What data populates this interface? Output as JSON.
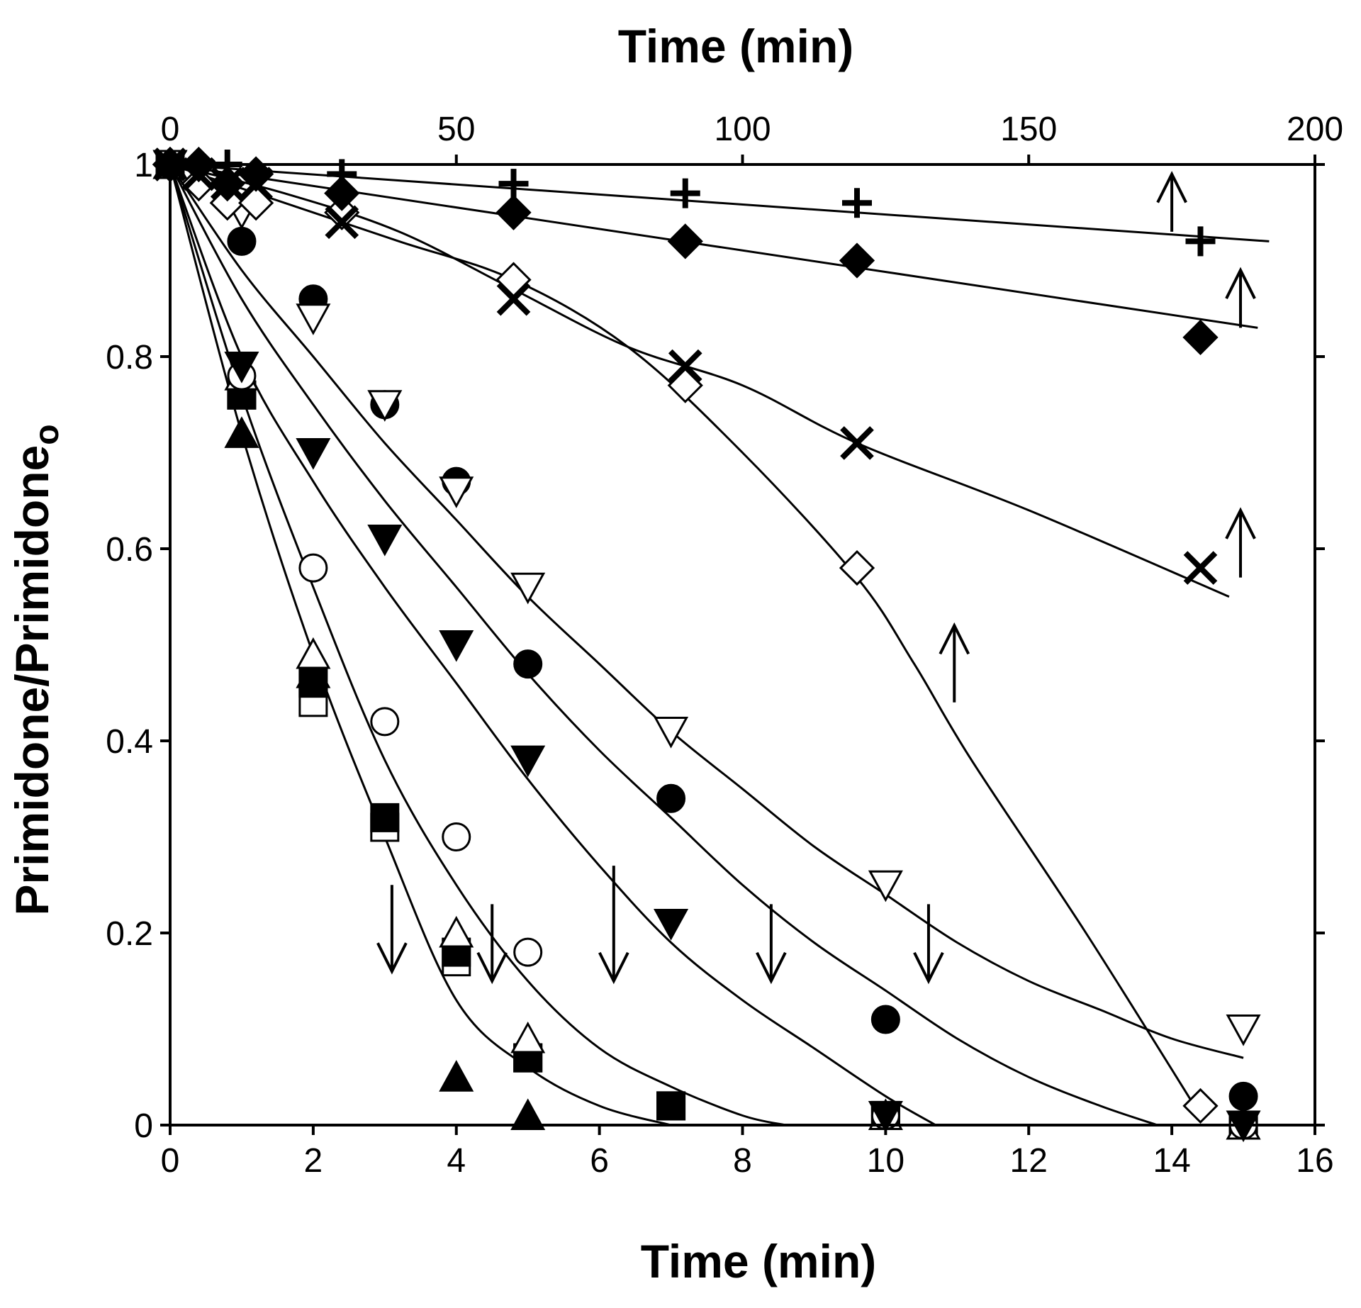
{
  "chart_data": {
    "type": "scatter",
    "title": "",
    "xlabel": "Time (min)",
    "x2label": "Time (min)",
    "ylabel_main": "Primidone/Primidone",
    "ylabel_sub": "o",
    "xlim": [
      0,
      16
    ],
    "x2lim": [
      0,
      200
    ],
    "ylim": [
      0,
      1
    ],
    "xticks": [
      "0",
      "2",
      "4",
      "6",
      "8",
      "10",
      "12",
      "14",
      "16"
    ],
    "x2ticks": [
      "0",
      "50",
      "100",
      "150",
      "200"
    ],
    "yticks": [
      "0",
      "0.2",
      "0.4",
      "0.6",
      "0.8",
      "1"
    ],
    "grid": false,
    "series": [
      {
        "name": "filled triangle up",
        "marker": "triangle-up-filled",
        "axis": "bottom",
        "points": [
          [
            0,
            1
          ],
          [
            1,
            0.72
          ],
          [
            2,
            0.47
          ],
          [
            4,
            0.05
          ],
          [
            5,
            0.01
          ],
          [
            15,
            0.0
          ]
        ]
      },
      {
        "name": "open square",
        "marker": "square-open",
        "axis": "bottom",
        "points": [
          [
            0,
            1
          ],
          [
            1,
            0.76
          ],
          [
            2,
            0.44
          ],
          [
            3,
            0.31
          ],
          [
            4,
            0.17
          ],
          [
            5,
            0.07
          ],
          [
            7,
            0.02
          ],
          [
            10,
            0.01
          ],
          [
            15,
            0.0
          ]
        ]
      },
      {
        "name": "filled square",
        "marker": "square-filled",
        "axis": "bottom",
        "points": [
          [
            0,
            1
          ],
          [
            1,
            0.76
          ],
          [
            2,
            0.46
          ],
          [
            3,
            0.32
          ],
          [
            4,
            0.18
          ],
          [
            5,
            0.07
          ],
          [
            7,
            0.02
          ],
          [
            10,
            0.01
          ],
          [
            15,
            0.0
          ]
        ]
      },
      {
        "name": "open triangle up",
        "marker": "triangle-up-open",
        "axis": "bottom",
        "points": [
          [
            0,
            1
          ],
          [
            1,
            0.78
          ],
          [
            2,
            0.49
          ],
          [
            4,
            0.2
          ],
          [
            5,
            0.09
          ],
          [
            10,
            0.01
          ],
          [
            15,
            0.0
          ]
        ]
      },
      {
        "name": "open circle",
        "marker": "circle-open",
        "axis": "bottom",
        "points": [
          [
            0,
            1
          ],
          [
            1,
            0.78
          ],
          [
            2,
            0.58
          ],
          [
            3,
            0.42
          ],
          [
            4,
            0.3
          ],
          [
            5,
            0.18
          ],
          [
            10,
            0.01
          ],
          [
            15,
            0.0
          ]
        ]
      },
      {
        "name": "filled triangle down",
        "marker": "triangle-down-filled",
        "axis": "bottom",
        "points": [
          [
            0,
            1
          ],
          [
            1,
            0.79
          ],
          [
            2,
            0.7
          ],
          [
            3,
            0.61
          ],
          [
            4,
            0.5
          ],
          [
            5,
            0.38
          ],
          [
            7,
            0.21
          ],
          [
            10,
            0.01
          ],
          [
            15,
            0.0
          ]
        ]
      },
      {
        "name": "filled circle",
        "marker": "circle-filled",
        "axis": "bottom",
        "points": [
          [
            0,
            1
          ],
          [
            1,
            0.92
          ],
          [
            2,
            0.86
          ],
          [
            3,
            0.75
          ],
          [
            4,
            0.67
          ],
          [
            5,
            0.48
          ],
          [
            7,
            0.34
          ],
          [
            10,
            0.11
          ],
          [
            15,
            0.03
          ]
        ]
      },
      {
        "name": "open triangle down",
        "marker": "triangle-down-open",
        "axis": "bottom",
        "points": [
          [
            0,
            1
          ],
          [
            1,
            0.95
          ],
          [
            2,
            0.84
          ],
          [
            3,
            0.75
          ],
          [
            4,
            0.66
          ],
          [
            5,
            0.56
          ],
          [
            7,
            0.41
          ],
          [
            10,
            0.25
          ],
          [
            15,
            0.1
          ]
        ]
      },
      {
        "name": "open diamond",
        "marker": "diamond-open",
        "axis": "top",
        "points": [
          [
            0,
            1
          ],
          [
            5,
            0.98
          ],
          [
            10,
            0.96
          ],
          [
            15,
            0.96
          ],
          [
            30,
            0.95
          ],
          [
            60,
            0.88
          ],
          [
            90,
            0.77
          ],
          [
            120,
            0.58
          ],
          [
            180,
            0.02
          ]
        ]
      },
      {
        "name": "cross",
        "marker": "x-cross",
        "axis": "top",
        "points": [
          [
            0,
            1
          ],
          [
            5,
            0.99
          ],
          [
            10,
            0.98
          ],
          [
            15,
            0.98
          ],
          [
            30,
            0.94
          ],
          [
            60,
            0.86
          ],
          [
            90,
            0.79
          ],
          [
            120,
            0.71
          ],
          [
            180,
            0.58
          ]
        ]
      },
      {
        "name": "filled diamond",
        "marker": "diamond-filled",
        "axis": "top",
        "points": [
          [
            0,
            1
          ],
          [
            5,
            1.0
          ],
          [
            10,
            0.98
          ],
          [
            15,
            0.99
          ],
          [
            30,
            0.97
          ],
          [
            60,
            0.95
          ],
          [
            90,
            0.92
          ],
          [
            120,
            0.9
          ],
          [
            180,
            0.82
          ]
        ]
      },
      {
        "name": "plus",
        "marker": "plus",
        "axis": "top",
        "points": [
          [
            0,
            1
          ],
          [
            5,
            1.0
          ],
          [
            10,
            1.0
          ],
          [
            15,
            0.99
          ],
          [
            30,
            0.99
          ],
          [
            60,
            0.98
          ],
          [
            90,
            0.97
          ],
          [
            120,
            0.96
          ],
          [
            180,
            0.92
          ]
        ]
      }
    ],
    "fit_curves": [
      {
        "name": "fit A",
        "axis": "bottom",
        "points": [
          [
            0,
            1
          ],
          [
            1,
            0.72
          ],
          [
            2,
            0.49
          ],
          [
            3,
            0.3
          ],
          [
            4,
            0.13
          ],
          [
            5,
            0.06
          ],
          [
            6,
            0.02
          ],
          [
            7,
            0.0
          ]
        ]
      },
      {
        "name": "fit B",
        "axis": "bottom",
        "points": [
          [
            0,
            1
          ],
          [
            1,
            0.76
          ],
          [
            2,
            0.56
          ],
          [
            3,
            0.38
          ],
          [
            4,
            0.25
          ],
          [
            5,
            0.15
          ],
          [
            6,
            0.08
          ],
          [
            7,
            0.04
          ],
          [
            8,
            0.01
          ],
          [
            8.6,
            0.0
          ]
        ]
      },
      {
        "name": "fit C",
        "axis": "bottom",
        "points": [
          [
            0,
            1
          ],
          [
            1,
            0.8
          ],
          [
            2,
            0.67
          ],
          [
            3,
            0.56
          ],
          [
            4,
            0.46
          ],
          [
            5,
            0.36
          ],
          [
            6,
            0.27
          ],
          [
            7,
            0.19
          ],
          [
            8,
            0.13
          ],
          [
            9,
            0.08
          ],
          [
            10,
            0.03
          ],
          [
            10.7,
            0.0
          ]
        ]
      },
      {
        "name": "fit D",
        "axis": "bottom",
        "points": [
          [
            0,
            1
          ],
          [
            1,
            0.86
          ],
          [
            2,
            0.75
          ],
          [
            3,
            0.65
          ],
          [
            4,
            0.56
          ],
          [
            5,
            0.47
          ],
          [
            6,
            0.39
          ],
          [
            7,
            0.32
          ],
          [
            8,
            0.25
          ],
          [
            9,
            0.19
          ],
          [
            10,
            0.14
          ],
          [
            11,
            0.09
          ],
          [
            12,
            0.05
          ],
          [
            13,
            0.02
          ],
          [
            13.8,
            0.0
          ]
        ]
      },
      {
        "name": "fit E",
        "axis": "bottom",
        "points": [
          [
            0,
            1
          ],
          [
            1,
            0.89
          ],
          [
            2,
            0.8
          ],
          [
            3,
            0.71
          ],
          [
            4,
            0.63
          ],
          [
            5,
            0.55
          ],
          [
            6,
            0.48
          ],
          [
            7,
            0.41
          ],
          [
            8,
            0.35
          ],
          [
            9,
            0.29
          ],
          [
            10,
            0.24
          ],
          [
            11,
            0.19
          ],
          [
            12,
            0.15
          ],
          [
            13,
            0.12
          ],
          [
            14,
            0.09
          ],
          [
            15,
            0.07
          ]
        ]
      },
      {
        "name": "fit F",
        "axis": "top",
        "points": [
          [
            0,
            1
          ],
          [
            20,
            0.96
          ],
          [
            40,
            0.92
          ],
          [
            60,
            0.88
          ],
          [
            80,
            0.81
          ],
          [
            100,
            0.7
          ],
          [
            120,
            0.57
          ],
          [
            130,
            0.48
          ],
          [
            140,
            0.38
          ],
          [
            160,
            0.2
          ],
          [
            180,
            0.01
          ]
        ]
      },
      {
        "name": "fit G",
        "axis": "top",
        "points": [
          [
            0,
            1
          ],
          [
            20,
            0.97
          ],
          [
            40,
            0.93
          ],
          [
            60,
            0.87
          ],
          [
            80,
            0.81
          ],
          [
            100,
            0.77
          ],
          [
            120,
            0.71
          ],
          [
            150,
            0.64
          ],
          [
            185,
            0.55
          ]
        ]
      },
      {
        "name": "fit H",
        "axis": "top",
        "points": [
          [
            0,
            1
          ],
          [
            190,
            0.83
          ]
        ]
      },
      {
        "name": "fit I",
        "axis": "top",
        "points": [
          [
            0,
            1
          ],
          [
            192,
            0.92
          ]
        ]
      }
    ],
    "arrows": [
      {
        "direction": "up",
        "axis": "top",
        "x": 175,
        "y_from": 0.93,
        "y_to": 0.99
      },
      {
        "direction": "up",
        "axis": "top",
        "x": 187,
        "y_from": 0.83,
        "y_to": 0.89
      },
      {
        "direction": "up",
        "axis": "top",
        "x": 187,
        "y_from": 0.57,
        "y_to": 0.64
      },
      {
        "direction": "up",
        "axis": "top",
        "x": 137,
        "y_from": 0.44,
        "y_to": 0.52
      },
      {
        "direction": "down",
        "axis": "bottom",
        "x": 3.1,
        "y_from": 0.25,
        "y_to": 0.16
      },
      {
        "direction": "down",
        "axis": "bottom",
        "x": 4.5,
        "y_from": 0.23,
        "y_to": 0.15
      },
      {
        "direction": "down",
        "axis": "bottom",
        "x": 6.2,
        "y_from": 0.27,
        "y_to": 0.15
      },
      {
        "direction": "down",
        "axis": "bottom",
        "x": 8.4,
        "y_from": 0.23,
        "y_to": 0.15
      },
      {
        "direction": "down",
        "axis": "bottom",
        "x": 10.6,
        "y_from": 0.23,
        "y_to": 0.15
      }
    ]
  }
}
